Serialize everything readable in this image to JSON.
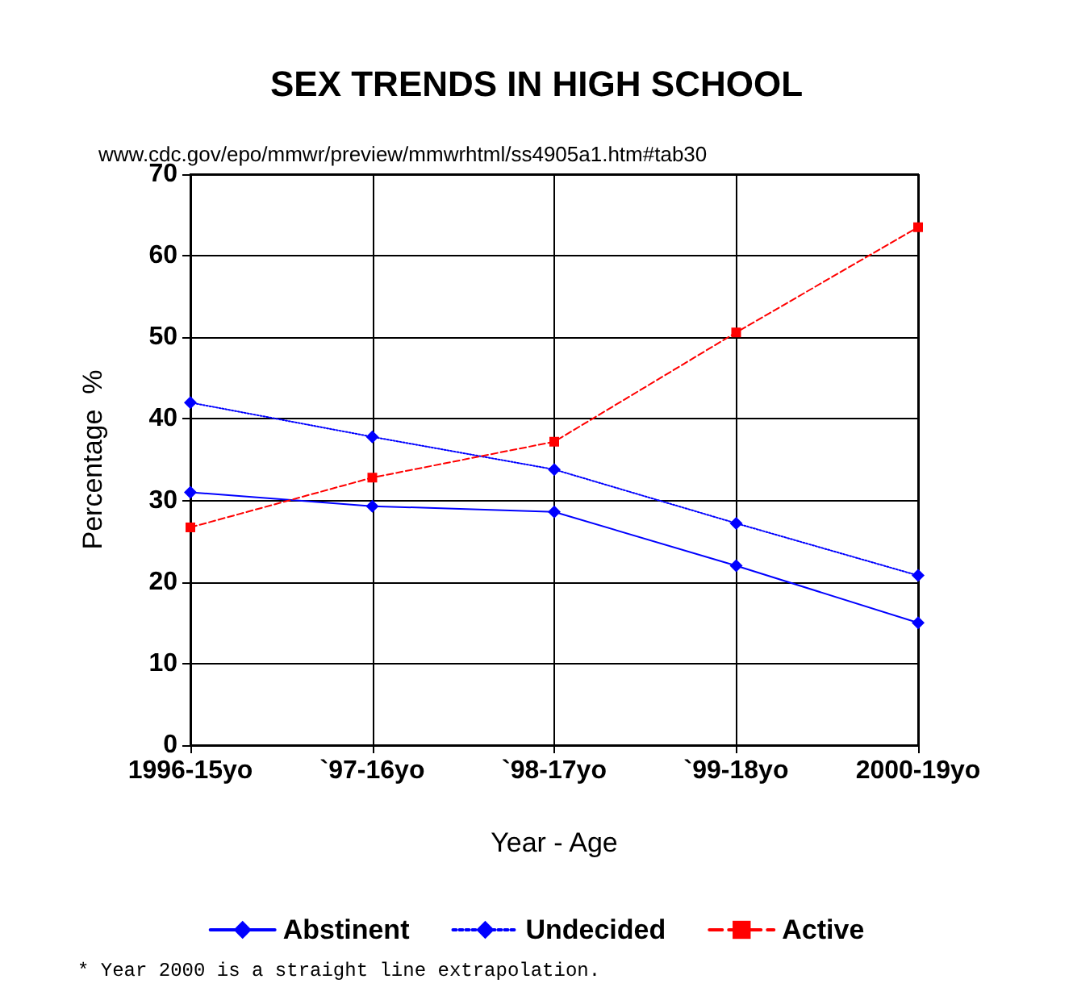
{
  "chart_data": {
    "type": "line",
    "title": "SEX TRENDS IN HIGH SCHOOL",
    "subtitle": "www.cdc.gov/epo/mmwr/preview/mmwrhtml/ss4905a1.htm#tab30",
    "xlabel": "Year - Age",
    "ylabel": "Percentage  %",
    "annotations": [
      "* Year 2000 is a straight line extrapolation."
    ],
    "categories": [
      "1996-15yo",
      "`97-16yo",
      "`98-17yo",
      "`99-18yo",
      "2000-19yo"
    ],
    "series": [
      {
        "name": "Abstinent",
        "color": "#0000ff",
        "marker": "diamond",
        "line_style": "solid",
        "values": [
          31,
          29.3,
          28.6,
          22,
          15
        ]
      },
      {
        "name": "Undecided",
        "color": "#0000ff",
        "marker": "diamond",
        "line_style": "dotted",
        "values": [
          42,
          37.8,
          33.8,
          27.2,
          20.8
        ]
      },
      {
        "name": "Active",
        "color": "#ff0000",
        "marker": "square",
        "line_style": "dashed",
        "values": [
          26.7,
          32.8,
          37.2,
          50.6,
          63.5
        ]
      }
    ],
    "ylim": [
      0,
      70
    ],
    "yticks": [
      0,
      10,
      20,
      30,
      40,
      50,
      60,
      70
    ],
    "grid": true,
    "legend": "bottom"
  }
}
